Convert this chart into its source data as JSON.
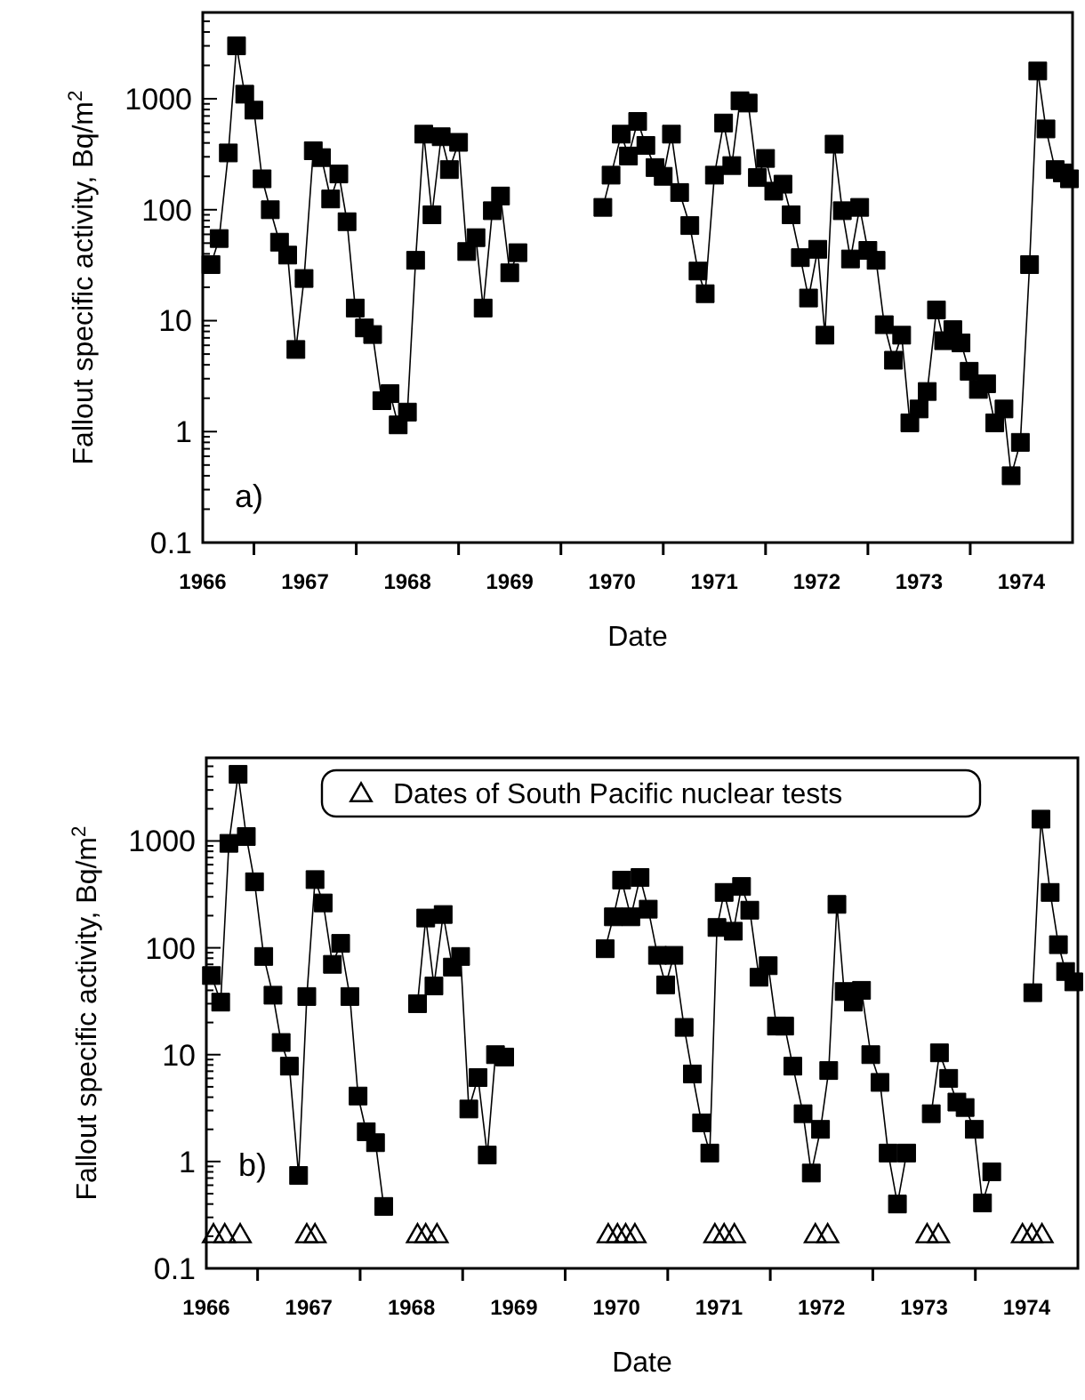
{
  "chart_data": [
    {
      "type": "line",
      "xlabel": "Date",
      "ylabel": "Fallout specific activity, Bq/m$^{2}$",
      "annotations": [
        "a)"
      ],
      "log": "y",
      "marker": "square",
      "line_style": "solid",
      "legend": false,
      "grid": false,
      "xlim": [
        1966.5,
        1975.0
      ],
      "xticks": [
        {
          "value": 1966.5,
          "label": "1966"
        },
        {
          "value": 1967.5,
          "label": "1967"
        },
        {
          "value": 1968.5,
          "label": "1968"
        },
        {
          "value": 1969.5,
          "label": "1969"
        },
        {
          "value": 1970.5,
          "label": "1970"
        },
        {
          "value": 1971.5,
          "label": "1971"
        },
        {
          "value": 1972.5,
          "label": "1972"
        },
        {
          "value": 1973.5,
          "label": "1973"
        },
        {
          "value": 1974.5,
          "label": "1974"
        },
        {
          "value": 1967,
          "label": null
        },
        {
          "value": 1968,
          "label": null
        },
        {
          "value": 1969,
          "label": null
        },
        {
          "value": 1970,
          "label": null
        },
        {
          "value": 1971,
          "label": null
        },
        {
          "value": 1972,
          "label": null
        },
        {
          "value": 1973,
          "label": null
        },
        {
          "value": 1974,
          "label": null
        }
      ],
      "ylim": [
        0.1,
        6000
      ],
      "yticks": [
        0.1,
        1,
        10,
        100,
        1000,
        {
          "value": 0.2,
          "label": null
        },
        {
          "value": 0.3,
          "label": null
        },
        {
          "value": 0.4,
          "label": null
        },
        {
          "value": 0.5,
          "label": null
        },
        {
          "value": 0.6,
          "label": null
        },
        {
          "value": 0.7,
          "label": null
        },
        {
          "value": 0.8,
          "label": null
        },
        {
          "value": 0.9,
          "label": null
        },
        {
          "value": 2,
          "label": null
        },
        {
          "value": 3,
          "label": null
        },
        {
          "value": 4,
          "label": null
        },
        {
          "value": 5,
          "label": null
        },
        {
          "value": 6,
          "label": null
        },
        {
          "value": 7,
          "label": null
        },
        {
          "value": 8,
          "label": null
        },
        {
          "value": 9,
          "label": null
        },
        {
          "value": 20,
          "label": null
        },
        {
          "value": 30,
          "label": null
        },
        {
          "value": 40,
          "label": null
        },
        {
          "value": 50,
          "label": null
        },
        {
          "value": 60,
          "label": null
        },
        {
          "value": 70,
          "label": null
        },
        {
          "value": 80,
          "label": null
        },
        {
          "value": 90,
          "label": null
        },
        {
          "value": 200,
          "label": null
        },
        {
          "value": 300,
          "label": null
        },
        {
          "value": 400,
          "label": null
        },
        {
          "value": 500,
          "label": null
        },
        {
          "value": 600,
          "label": null
        },
        {
          "value": 700,
          "label": null
        },
        {
          "value": 800,
          "label": null
        },
        {
          "value": 900,
          "label": null
        },
        {
          "value": 2000,
          "label": null
        },
        {
          "value": 3000,
          "label": null
        },
        {
          "value": 4000,
          "label": null
        },
        {
          "value": 5000,
          "label": null
        },
        {
          "value": 6000,
          "label": null
        }
      ],
      "series": [
        {
          "color": "#000000",
          "x": [
            1966.58,
            1966.66,
            1966.75,
            1966.83,
            1966.91,
            1967.0,
            1967.08,
            1967.16,
            1967.25,
            1967.33,
            1967.41,
            1967.49,
            1967.58,
            1967.66,
            1967.75,
            1967.83,
            1967.91,
            1967.99,
            1968.08,
            1968.16,
            1968.25,
            1968.33,
            1968.41,
            1968.5,
            1968.58,
            1968.66,
            1968.74,
            1968.83,
            1968.91,
            1969.0,
            1969.08,
            1969.17,
            1969.24,
            1969.33,
            1969.41,
            1969.5,
            1969.58,
            1970.0,
            1970.41,
            1970.49,
            1970.59,
            1970.66,
            1970.75,
            1970.83,
            1970.92,
            1971.0,
            1971.08,
            1971.16,
            1971.26,
            1971.34,
            1971.41,
            1971.5,
            1971.59,
            1971.67,
            1971.75,
            1971.83,
            1971.92,
            1972.0,
            1972.08,
            1972.17,
            1972.25,
            1972.34,
            1972.42,
            1972.51,
            1972.58,
            1972.67,
            1972.75,
            1972.83,
            1972.92,
            1973.0,
            1973.08,
            1973.16,
            1973.25,
            1973.33,
            1973.41,
            1973.5,
            1973.58,
            1973.67,
            1973.74,
            1973.83,
            1973.91,
            1973.99,
            1974.08,
            1974.16,
            1974.24,
            1974.33,
            1974.4,
            1974.49,
            1974.58,
            1974.66,
            1974.74,
            1974.83,
            1974.9,
            1974.97
          ],
          "values": [
            32,
            55,
            325,
            3000,
            1100,
            790,
            190,
            100,
            51,
            39,
            5.5,
            24,
            340,
            295,
            125,
            210,
            78,
            13,
            8.6,
            7.5,
            1.9,
            2.2,
            1.15,
            1.5,
            35,
            480,
            90,
            455,
            230,
            405,
            42,
            56,
            13,
            98,
            133,
            27,
            41,
            null,
            105,
            205,
            480,
            305,
            625,
            380,
            240,
            200,
            480,
            143,
            72,
            28,
            17.5,
            205,
            605,
            250,
            960,
            915,
            195,
            290,
            147,
            170,
            90,
            37,
            16,
            44,
            7.4,
            390,
            98,
            36,
            105,
            43,
            35,
            9.2,
            4.4,
            7.4,
            1.2,
            1.6,
            2.3,
            12.5,
            6.6,
            8.3,
            6.3,
            3.5,
            2.4,
            2.7,
            1.2,
            1.6,
            0.4,
            0.8,
            32,
            1780,
            535,
            230,
            215,
            190
          ]
        }
      ]
    },
    {
      "type": "line",
      "xlabel": "Date",
      "ylabel": "Fallout specific activity, Bq/m$^{2}$",
      "annotations": [
        "b)"
      ],
      "log": "y",
      "marker": "square",
      "line_style": "solid",
      "legend": "top",
      "grid": false,
      "xlim": [
        1966.5,
        1975.0
      ],
      "xticks": [
        {
          "value": 1966.5,
          "label": "1966"
        },
        {
          "value": 1967.5,
          "label": "1967"
        },
        {
          "value": 1968.5,
          "label": "1968"
        },
        {
          "value": 1969.5,
          "label": "1969"
        },
        {
          "value": 1970.5,
          "label": "1970"
        },
        {
          "value": 1971.5,
          "label": "1971"
        },
        {
          "value": 1972.5,
          "label": "1972"
        },
        {
          "value": 1973.5,
          "label": "1973"
        },
        {
          "value": 1974.5,
          "label": "1974"
        },
        {
          "value": 1967,
          "label": null
        },
        {
          "value": 1968,
          "label": null
        },
        {
          "value": 1969,
          "label": null
        },
        {
          "value": 1970,
          "label": null
        },
        {
          "value": 1971,
          "label": null
        },
        {
          "value": 1972,
          "label": null
        },
        {
          "value": 1973,
          "label": null
        },
        {
          "value": 1974,
          "label": null
        }
      ],
      "ylim": [
        0.1,
        6000
      ],
      "yticks": [
        0.1,
        1,
        10,
        100,
        1000,
        {
          "value": 0.2,
          "label": null
        },
        {
          "value": 0.3,
          "label": null
        },
        {
          "value": 0.4,
          "label": null
        },
        {
          "value": 0.5,
          "label": null
        },
        {
          "value": 0.6,
          "label": null
        },
        {
          "value": 0.7,
          "label": null
        },
        {
          "value": 0.8,
          "label": null
        },
        {
          "value": 0.9,
          "label": null
        },
        {
          "value": 2,
          "label": null
        },
        {
          "value": 3,
          "label": null
        },
        {
          "value": 4,
          "label": null
        },
        {
          "value": 5,
          "label": null
        },
        {
          "value": 6,
          "label": null
        },
        {
          "value": 7,
          "label": null
        },
        {
          "value": 8,
          "label": null
        },
        {
          "value": 9,
          "label": null
        },
        {
          "value": 20,
          "label": null
        },
        {
          "value": 30,
          "label": null
        },
        {
          "value": 40,
          "label": null
        },
        {
          "value": 50,
          "label": null
        },
        {
          "value": 60,
          "label": null
        },
        {
          "value": 70,
          "label": null
        },
        {
          "value": 80,
          "label": null
        },
        {
          "value": 90,
          "label": null
        },
        {
          "value": 200,
          "label": null
        },
        {
          "value": 300,
          "label": null
        },
        {
          "value": 400,
          "label": null
        },
        {
          "value": 500,
          "label": null
        },
        {
          "value": 600,
          "label": null
        },
        {
          "value": 700,
          "label": null
        },
        {
          "value": 800,
          "label": null
        },
        {
          "value": 900,
          "label": null
        },
        {
          "value": 2000,
          "label": null
        },
        {
          "value": 3000,
          "label": null
        },
        {
          "value": 4000,
          "label": null
        },
        {
          "value": 5000,
          "label": null
        },
        {
          "value": 6000,
          "label": null
        }
      ],
      "series": [
        {
          "color": "#000000",
          "x": [
            1966.55,
            1966.64,
            1966.72,
            1966.81,
            1966.89,
            1966.97,
            1967.06,
            1967.15,
            1967.23,
            1967.31,
            1967.4,
            1967.48,
            1967.56,
            1967.64,
            1967.73,
            1967.81,
            1967.9,
            1967.98,
            1968.06,
            1968.15,
            1968.23,
            1968.4,
            1968.56,
            1968.64,
            1968.72,
            1968.81,
            1968.9,
            1968.98,
            1969.06,
            1969.15,
            1969.24,
            1969.32,
            1969.41,
            1970.0,
            1970.39,
            1970.47,
            1970.55,
            1970.64,
            1970.73,
            1970.81,
            1970.9,
            1970.98,
            1971.06,
            1971.16,
            1971.24,
            1971.33,
            1971.41,
            1971.48,
            1971.55,
            1971.64,
            1971.72,
            1971.8,
            1971.89,
            1971.98,
            1972.06,
            1972.14,
            1972.22,
            1972.32,
            1972.4,
            1972.49,
            1972.57,
            1972.65,
            1972.72,
            1972.81,
            1972.89,
            1972.98,
            1973.07,
            1973.15,
            1973.24,
            1973.33,
            1973.45,
            1973.57,
            1973.65,
            1973.74,
            1973.82,
            1973.9,
            1973.99,
            1974.07,
            1974.16,
            1974.4,
            1974.56,
            1974.64,
            1974.73,
            1974.81,
            1974.88,
            1974.96
          ],
          "values": [
            55,
            31,
            950,
            4200,
            1100,
            415,
            83,
            36,
            13,
            7.8,
            0.74,
            35,
            435,
            263,
            70,
            110,
            35,
            4.1,
            1.9,
            1.5,
            0.38,
            null,
            30,
            190,
            44,
            205,
            66,
            83,
            3.1,
            6.1,
            1.15,
            10,
            9.5,
            null,
            98,
            195,
            430,
            195,
            455,
            230,
            85,
            45,
            85,
            18,
            6.6,
            2.3,
            1.2,
            155,
            330,
            143,
            375,
            225,
            53,
            68,
            18.5,
            18.5,
            7.8,
            2.8,
            0.78,
            2.0,
            7.1,
            255,
            39,
            31,
            40,
            10,
            5.5,
            1.2,
            0.4,
            1.2,
            null,
            2.8,
            10.4,
            6.0,
            3.6,
            3.2,
            2.0,
            0.41,
            0.8,
            null,
            38,
            1600,
            330,
            107,
            60,
            48
          ]
        },
        {
          "type": "scatter",
          "marker": "triangle",
          "name": "Dates of South Pacific nuclear tests",
          "color": "#000000",
          "x": [
            1966.57,
            1966.68,
            1966.83,
            1967.48,
            1967.56,
            1968.56,
            1968.64,
            1968.75,
            1970.42,
            1970.51,
            1970.59,
            1970.68,
            1971.46,
            1971.55,
            1971.65,
            1972.44,
            1972.56,
            1973.53,
            1973.64,
            1974.46,
            1974.55,
            1974.65
          ],
          "values": [
            0.2,
            0.2,
            0.2,
            0.2,
            0.2,
            0.2,
            0.2,
            0.2,
            0.2,
            0.2,
            0.2,
            0.2,
            0.2,
            0.2,
            0.2,
            0.2,
            0.2,
            0.2,
            0.2,
            0.2,
            0.2,
            0.2
          ]
        }
      ]
    }
  ]
}
